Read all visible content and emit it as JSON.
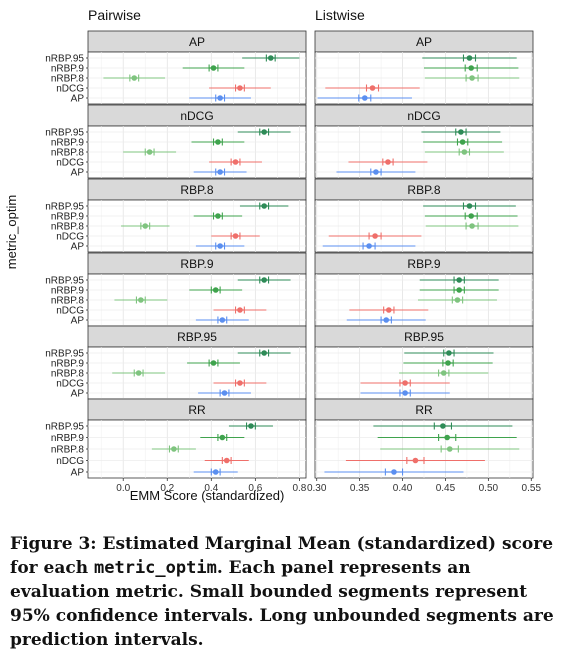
{
  "chart_data": {
    "type": "scatter",
    "subtype": "faceted point-range (EMM with CI and PI)",
    "xlabel": "EMM Score (standardized)",
    "ylabel": "metric_optim",
    "columns": [
      "Pairwise",
      "Listwise"
    ],
    "rows": [
      "AP",
      "nDCG",
      "RBP.8",
      "RBP.9",
      "RBP.95",
      "RR"
    ],
    "y_categories": [
      "nRBP.95",
      "nRBP.9",
      "nRBP.8",
      "nDCG",
      "AP"
    ],
    "colors": {
      "nRBP.95": "#2e8b57",
      "nRBP.9": "#3fa34d",
      "nRBP.8": "#7fc47f",
      "nDCG": "#ef6f6a",
      "AP": "#5b8ff0"
    },
    "x_axes": {
      "Pairwise": {
        "xlim": [
          -0.16,
          0.83
        ],
        "ticks": [
          0.0,
          0.2,
          0.4,
          0.6,
          0.8
        ],
        "tick_labels": [
          "0.0",
          "0.2",
          "0.4",
          "0.6",
          "0.8"
        ]
      },
      "Listwise": {
        "xlim": [
          0.298,
          0.552
        ],
        "ticks": [
          0.3,
          0.35,
          0.4,
          0.45,
          0.5,
          0.55
        ],
        "tick_labels": [
          "0.30",
          "0.35",
          "0.40",
          "0.45",
          "0.50",
          "0.55"
        ]
      }
    },
    "panels": {
      "Pairwise": {
        "AP": [
          [
            0.67,
            0.65,
            0.69,
            0.54,
            0.8
          ],
          [
            0.41,
            0.39,
            0.43,
            0.27,
            0.55
          ],
          [
            0.05,
            0.03,
            0.07,
            -0.09,
            0.19
          ],
          [
            0.53,
            0.51,
            0.55,
            0.39,
            0.67
          ],
          [
            0.44,
            0.42,
            0.46,
            0.3,
            0.58
          ]
        ],
        "nDCG": [
          [
            0.64,
            0.62,
            0.66,
            0.52,
            0.76
          ],
          [
            0.43,
            0.41,
            0.45,
            0.31,
            0.55
          ],
          [
            0.12,
            0.1,
            0.14,
            0.0,
            0.24
          ],
          [
            0.51,
            0.49,
            0.53,
            0.39,
            0.63
          ],
          [
            0.44,
            0.42,
            0.46,
            0.32,
            0.56
          ]
        ],
        "RBP.8": [
          [
            0.64,
            0.62,
            0.66,
            0.53,
            0.75
          ],
          [
            0.43,
            0.41,
            0.45,
            0.32,
            0.54
          ],
          [
            0.1,
            0.08,
            0.12,
            -0.01,
            0.21
          ],
          [
            0.51,
            0.49,
            0.53,
            0.4,
            0.62
          ],
          [
            0.44,
            0.42,
            0.46,
            0.33,
            0.55
          ]
        ],
        "RBP.9": [
          [
            0.64,
            0.62,
            0.66,
            0.52,
            0.76
          ],
          [
            0.42,
            0.4,
            0.44,
            0.3,
            0.54
          ],
          [
            0.08,
            0.06,
            0.1,
            -0.04,
            0.2
          ],
          [
            0.53,
            0.51,
            0.55,
            0.41,
            0.65
          ],
          [
            0.45,
            0.43,
            0.47,
            0.33,
            0.57
          ]
        ],
        "RBP.95": [
          [
            0.64,
            0.62,
            0.66,
            0.52,
            0.76
          ],
          [
            0.41,
            0.39,
            0.43,
            0.29,
            0.53
          ],
          [
            0.07,
            0.05,
            0.09,
            -0.05,
            0.19
          ],
          [
            0.53,
            0.51,
            0.55,
            0.41,
            0.65
          ],
          [
            0.46,
            0.44,
            0.48,
            0.34,
            0.58
          ]
        ],
        "RR": [
          [
            0.58,
            0.56,
            0.6,
            0.48,
            0.68
          ],
          [
            0.45,
            0.43,
            0.47,
            0.35,
            0.55
          ],
          [
            0.23,
            0.21,
            0.25,
            0.13,
            0.33
          ],
          [
            0.47,
            0.45,
            0.49,
            0.37,
            0.57
          ],
          [
            0.42,
            0.4,
            0.44,
            0.32,
            0.52
          ]
        ]
      },
      "Listwise": {
        "AP": [
          [
            0.478,
            0.471,
            0.485,
            0.423,
            0.533
          ],
          [
            0.48,
            0.473,
            0.487,
            0.425,
            0.535
          ],
          [
            0.481,
            0.474,
            0.488,
            0.426,
            0.536
          ],
          [
            0.365,
            0.358,
            0.372,
            0.31,
            0.42
          ],
          [
            0.356,
            0.349,
            0.363,
            0.301,
            0.411
          ]
        ],
        "nDCG": [
          [
            0.468,
            0.462,
            0.474,
            0.422,
            0.514
          ],
          [
            0.47,
            0.464,
            0.476,
            0.424,
            0.516
          ],
          [
            0.472,
            0.466,
            0.478,
            0.426,
            0.518
          ],
          [
            0.383,
            0.377,
            0.389,
            0.337,
            0.429
          ],
          [
            0.369,
            0.363,
            0.375,
            0.323,
            0.415
          ]
        ],
        "RBP.8": [
          [
            0.478,
            0.471,
            0.485,
            0.424,
            0.532
          ],
          [
            0.48,
            0.473,
            0.487,
            0.426,
            0.534
          ],
          [
            0.481,
            0.474,
            0.488,
            0.427,
            0.535
          ],
          [
            0.368,
            0.361,
            0.375,
            0.314,
            0.422
          ],
          [
            0.361,
            0.354,
            0.368,
            0.307,
            0.415
          ]
        ],
        "RBP.9": [
          [
            0.466,
            0.46,
            0.472,
            0.42,
            0.512
          ],
          [
            0.466,
            0.46,
            0.472,
            0.42,
            0.512
          ],
          [
            0.464,
            0.458,
            0.47,
            0.418,
            0.51
          ],
          [
            0.384,
            0.378,
            0.39,
            0.338,
            0.43
          ],
          [
            0.381,
            0.375,
            0.387,
            0.335,
            0.427
          ]
        ],
        "RBP.95": [
          [
            0.454,
            0.448,
            0.46,
            0.402,
            0.506
          ],
          [
            0.453,
            0.447,
            0.459,
            0.401,
            0.505
          ],
          [
            0.448,
            0.442,
            0.454,
            0.396,
            0.5
          ],
          [
            0.403,
            0.397,
            0.409,
            0.351,
            0.455
          ],
          [
            0.403,
            0.397,
            0.409,
            0.351,
            0.455
          ]
        ],
        "RR": [
          [
            0.447,
            0.437,
            0.457,
            0.366,
            0.528
          ],
          [
            0.452,
            0.442,
            0.462,
            0.371,
            0.533
          ],
          [
            0.455,
            0.445,
            0.465,
            0.374,
            0.536
          ],
          [
            0.415,
            0.405,
            0.425,
            0.334,
            0.496
          ],
          [
            0.39,
            0.38,
            0.4,
            0.309,
            0.471
          ]
        ]
      }
    }
  },
  "caption": {
    "part1": "Figure 3: Estimated Marginal Mean (standardized) score for each ",
    "code": "metric_optim",
    "part2": ". Each panel represents an evaluation metric. Small bounded segments represent 95% confidence intervals. Long unbounded segments are prediction intervals."
  }
}
